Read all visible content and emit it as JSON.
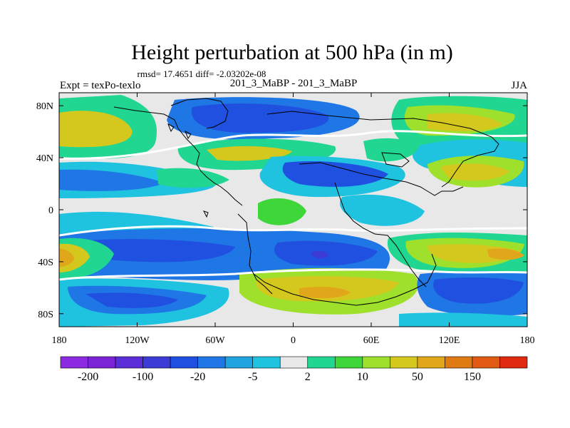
{
  "chart_data": {
    "type": "heatmap",
    "title": "Height perturbation at 500 hPa (in m)",
    "stats_text": "rmsd= 17.4651  diff= -2.03202e-08",
    "left_label": "Expt = texPo-texlo",
    "center_label": "201_3_MaBP - 201_3_MaBP",
    "right_label": "JJA",
    "x_ticks": [
      {
        "lon": -180,
        "label": "180"
      },
      {
        "lon": -120,
        "label": "120W"
      },
      {
        "lon": -60,
        "label": "60W"
      },
      {
        "lon": 0,
        "label": "0"
      },
      {
        "lon": 60,
        "label": "60E"
      },
      {
        "lon": 120,
        "label": "120E"
      },
      {
        "lon": 180,
        "label": "180"
      }
    ],
    "y_ticks": [
      {
        "lat": 80,
        "label": "80N"
      },
      {
        "lat": 40,
        "label": "40N"
      },
      {
        "lat": 0,
        "label": "0"
      },
      {
        "lat": -40,
        "label": "40S"
      },
      {
        "lat": -80,
        "label": "80S"
      }
    ],
    "xlim": [
      -180,
      180
    ],
    "ylim": [
      -90,
      90
    ],
    "colorbar": {
      "colors": [
        "#8b2ae0",
        "#7a24d6",
        "#5a2dd6",
        "#3d3bd6",
        "#2050e0",
        "#1f77e6",
        "#1fa4e0",
        "#1fc2df",
        "#e8e8e8",
        "#20d690",
        "#3fd63a",
        "#9ee02b",
        "#d4c81f",
        "#e0a71a",
        "#e07a13",
        "#e05a13",
        "#e02a10"
      ],
      "labels": [
        "-200",
        "-100",
        "-20",
        "-5",
        "2",
        "10",
        "50",
        "150"
      ]
    }
  }
}
